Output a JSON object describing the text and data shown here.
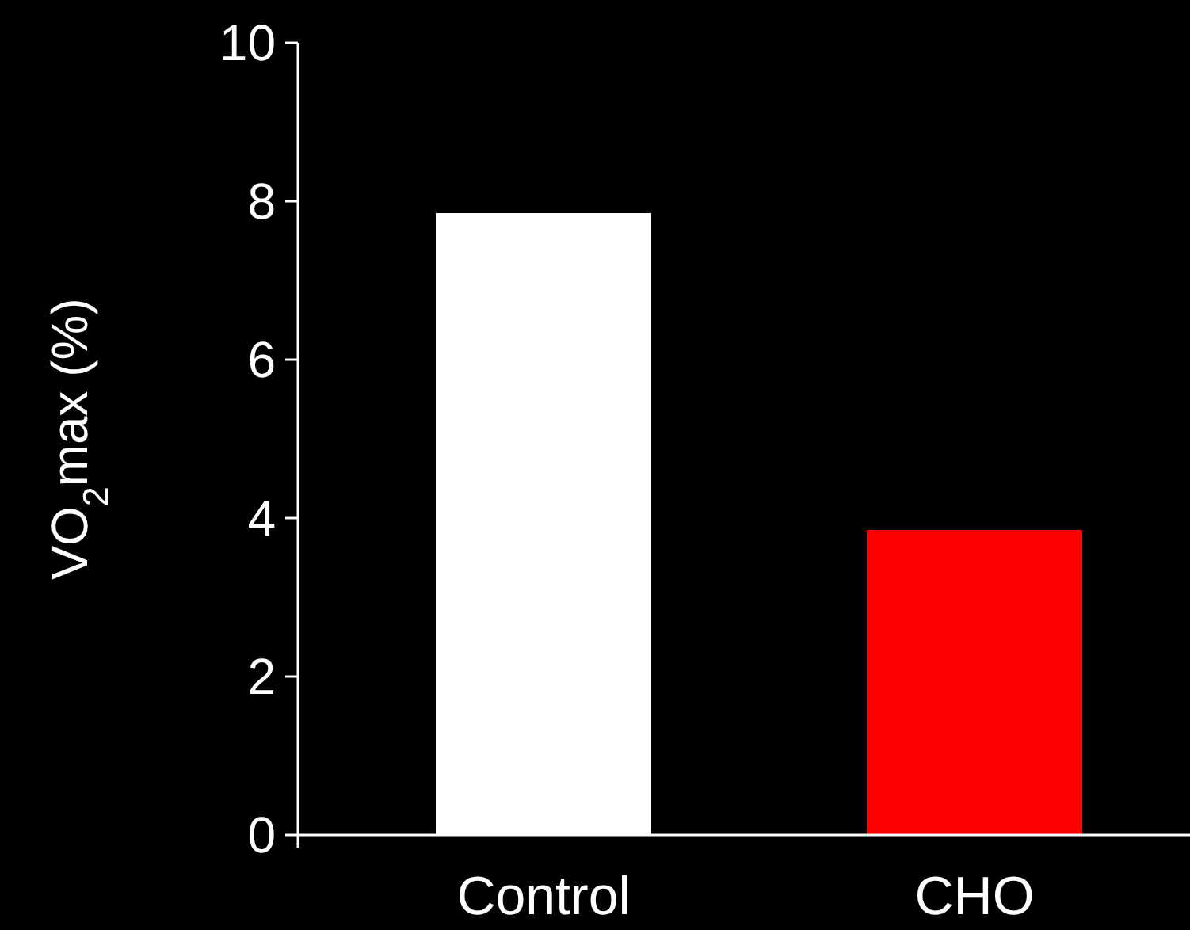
{
  "chart_data": {
    "type": "bar",
    "ylabel": "VO$_{2}$max (%)",
    "categories": [
      "Control",
      "CHO"
    ],
    "values": [
      7.85,
      3.85
    ],
    "colors": [
      "#ffffff",
      "#ff0000"
    ],
    "ylim": [
      0,
      10
    ],
    "yticks": [
      0,
      2,
      4,
      6,
      8,
      10
    ],
    "grid": false
  }
}
